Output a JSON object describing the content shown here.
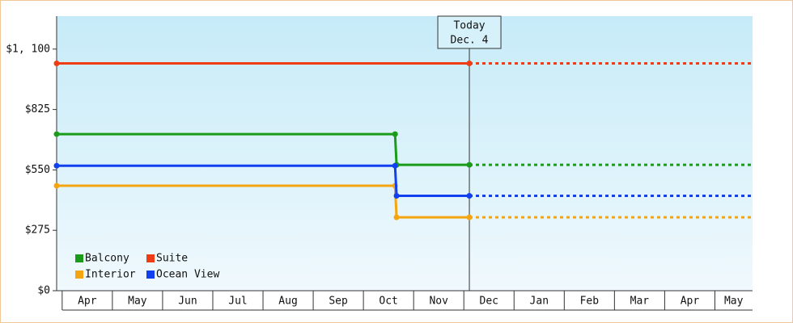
{
  "chart_data": {
    "type": "step-line",
    "categories": [
      "Apr",
      "May",
      "Jun",
      "Jul",
      "Aug",
      "Sep",
      "Oct",
      "Nov",
      "Dec",
      "Jan",
      "Feb",
      "Mar",
      "Apr",
      "May"
    ],
    "xlim": [
      -0.11,
      13.75
    ],
    "ylim": [
      0,
      1250
    ],
    "yticks": [
      {
        "value": 0,
        "label": "$0"
      },
      {
        "value": 275,
        "label": "$275"
      },
      {
        "value": 550,
        "label": "$550"
      },
      {
        "value": 825,
        "label": "$825"
      },
      {
        "value": 1100,
        "label": "$1, 100"
      }
    ],
    "today": {
      "x": 8.11,
      "label": [
        "Today",
        "Dec. 4"
      ]
    },
    "series": [
      {
        "name": "Balcony",
        "color": "#1a9c1a",
        "x": [
          -0.11,
          6.63,
          6.66,
          8.11
        ],
        "values": [
          713,
          713,
          573,
          573
        ]
      },
      {
        "name": "Suite",
        "color": "#f03c14",
        "x": [
          -0.11,
          8.11
        ],
        "values": [
          1035,
          1035
        ]
      },
      {
        "name": "Interior",
        "color": "#f5a50f",
        "x": [
          -0.11,
          6.63,
          6.66,
          8.11
        ],
        "values": [
          478,
          478,
          334,
          334
        ]
      },
      {
        "name": "Ocean View",
        "color": "#1040f0",
        "x": [
          -0.11,
          6.63,
          6.66,
          8.11
        ],
        "values": [
          569,
          569,
          432,
          432
        ]
      }
    ]
  }
}
